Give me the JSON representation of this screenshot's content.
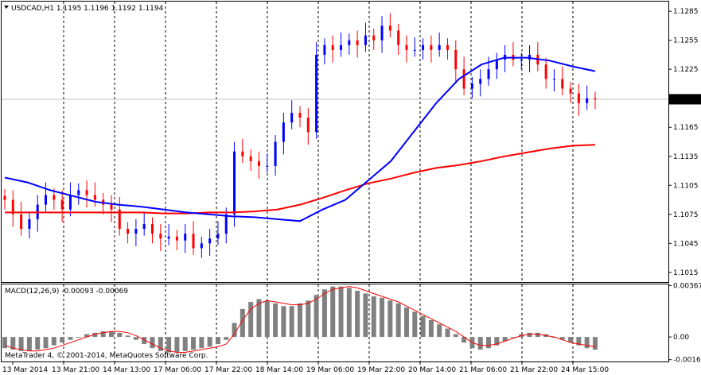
{
  "window": {
    "symbol_line": "USDCAD,H1  1.1195 1.1196 1.1192 1.1194",
    "copyright": "MetaTrader 4, © 2001-2014, MetaQuotes Software Corp.",
    "menu_icon": "triangle-down-icon"
  },
  "chart_data": [
    {
      "type": "candlestick",
      "ylim": [
        1.1005,
        1.1295
      ],
      "yticks": [
        "1.1285",
        "1.1255",
        "1.1225",
        "1.1194",
        "1.1165",
        "1.1135",
        "1.1105",
        "1.1075",
        "1.1045",
        "1.1015"
      ],
      "yticks_values": [
        1.1285,
        1.1255,
        1.1225,
        1.1194,
        1.1165,
        1.1135,
        1.1105,
        1.1075,
        1.1045,
        1.1015
      ],
      "current_price": "1.1194",
      "current_price_value": 1.1194,
      "xticks": [
        "13 Mar 2014",
        "13 Mar 21:00",
        "14 Mar 13:00",
        "17 Mar 06:00",
        "17 Mar 22:00",
        "18 Mar 14:00",
        "19 Mar 06:00",
        "19 Mar 22:00",
        "20 Mar 14:00",
        "21 Mar 06:00",
        "21 Mar 22:00",
        "24 Mar 15:00"
      ],
      "colors": {
        "bull": "#0000ff",
        "bear": "#ff0000",
        "ma_fast": "#0000ff",
        "ma_slow": "#ff0000",
        "grid": "#000000",
        "price_tag_bg": "#000000"
      },
      "ma_fast": [
        1.1113,
        1.1108,
        1.11,
        1.1094,
        1.1088,
        1.1085,
        1.1083,
        1.108,
        1.1077,
        1.1075,
        1.1073,
        1.1072,
        1.107,
        1.1068,
        1.108,
        1.109,
        1.111,
        1.113,
        1.116,
        1.119,
        1.1215,
        1.123,
        1.1237,
        1.1237,
        1.1234,
        1.1228,
        1.1223
      ],
      "ma_slow": [
        1.1077,
        1.1077,
        1.1077,
        1.1077,
        1.1077,
        1.1077,
        1.1077,
        1.1076,
        1.1076,
        1.1077,
        1.1077,
        1.1078,
        1.108,
        1.1085,
        1.1092,
        1.11,
        1.1107,
        1.1112,
        1.1118,
        1.1123,
        1.1126,
        1.113,
        1.1135,
        1.1139,
        1.1143,
        1.1146,
        1.1147
      ],
      "close": [
        1.109,
        1.1075,
        1.106,
        1.107,
        1.1085,
        1.1095,
        1.109,
        1.108,
        1.1095,
        1.11,
        1.1095,
        1.109,
        1.1085,
        1.108,
        1.106,
        1.1055,
        1.106,
        1.1065,
        1.1055,
        1.105,
        1.1052,
        1.1048,
        1.1055,
        1.104,
        1.1045,
        1.105,
        1.1055,
        1.1075,
        1.114,
        1.1135,
        1.113,
        1.1125,
        1.1125,
        1.115,
        1.117,
        1.118,
        1.1175,
        1.116,
        1.124,
        1.125,
        1.1245,
        1.125,
        1.1255,
        1.125,
        1.126,
        1.1255,
        1.127,
        1.1265,
        1.125,
        1.1245,
        1.1245,
        1.125,
        1.1245,
        1.125,
        1.1245,
        1.1225,
        1.1205,
        1.121,
        1.1215,
        1.1225,
        1.1235,
        1.124,
        1.1235,
        1.1235,
        1.124,
        1.123,
        1.1215,
        1.1215,
        1.1205,
        1.12,
        1.119,
        1.1195,
        1.1194
      ],
      "macd": {
        "label": "MACD(12,26,9) -0.00093 -0.00069",
        "ylim": [
          -0.00175,
          0.00375
        ],
        "yticks": [
          "0.00367",
          "0.00",
          "-0.00162"
        ],
        "yticks_values": [
          0.00367,
          0.0,
          -0.00162
        ],
        "hist_color": "#808080",
        "signal_color": "#ff0000",
        "histogram": [
          -0.0008,
          -0.0009,
          -0.001,
          -0.001,
          -0.0009,
          -0.0008,
          -0.0006,
          -0.0004,
          -0.0002,
          0.0,
          0.0002,
          0.0003,
          0.0004,
          0.0004,
          0.0003,
          0.0001,
          -0.0002,
          -0.0005,
          -0.0008,
          -0.001,
          -0.0011,
          -0.0011,
          -0.001,
          -0.0009,
          -0.0008,
          -0.0007,
          -0.0005,
          -0.0002,
          0.001,
          0.002,
          0.0025,
          0.0027,
          0.0026,
          0.0024,
          0.0022,
          0.0022,
          0.0024,
          0.0026,
          0.003,
          0.0034,
          0.0036,
          0.0036,
          0.0035,
          0.0033,
          0.0031,
          0.0029,
          0.0028,
          0.0026,
          0.0024,
          0.0021,
          0.0018,
          0.0015,
          0.0012,
          0.0009,
          0.0006,
          0.0002,
          -0.0004,
          -0.0008,
          -0.0009,
          -0.0008,
          -0.0006,
          -0.0003,
          0.0,
          0.0002,
          0.0003,
          0.0003,
          0.0002,
          0.0,
          -0.0002,
          -0.0004,
          -0.0006,
          -0.0008,
          -0.0009
        ],
        "signal": [
          -0.0006,
          -0.0008,
          -0.0009,
          -0.001,
          -0.001,
          -0.0009,
          -0.0008,
          -0.0006,
          -0.0004,
          -0.0002,
          0.0,
          0.0002,
          0.0003,
          0.0004,
          0.0004,
          0.0003,
          0.0001,
          -0.0002,
          -0.0005,
          -0.0008,
          -0.001,
          -0.0011,
          -0.0011,
          -0.001,
          -0.0009,
          -0.0008,
          -0.0007,
          -0.0005,
          0.0002,
          0.0012,
          0.002,
          0.0024,
          0.0026,
          0.0025,
          0.0024,
          0.0023,
          0.0023,
          0.0024,
          0.0027,
          0.0031,
          0.0034,
          0.0035,
          0.0036,
          0.0035,
          0.0033,
          0.0031,
          0.0029,
          0.0027,
          0.0025,
          0.0022,
          0.0019,
          0.0016,
          0.0013,
          0.001,
          0.0007,
          0.0004,
          0.0,
          -0.0004,
          -0.0006,
          -0.0006,
          -0.0005,
          -0.0003,
          -0.0001,
          0.0001,
          0.0002,
          0.0002,
          0.0001,
          0.0,
          -0.0002,
          -0.0004,
          -0.0005,
          -0.0006,
          -0.0007
        ]
      }
    }
  ]
}
